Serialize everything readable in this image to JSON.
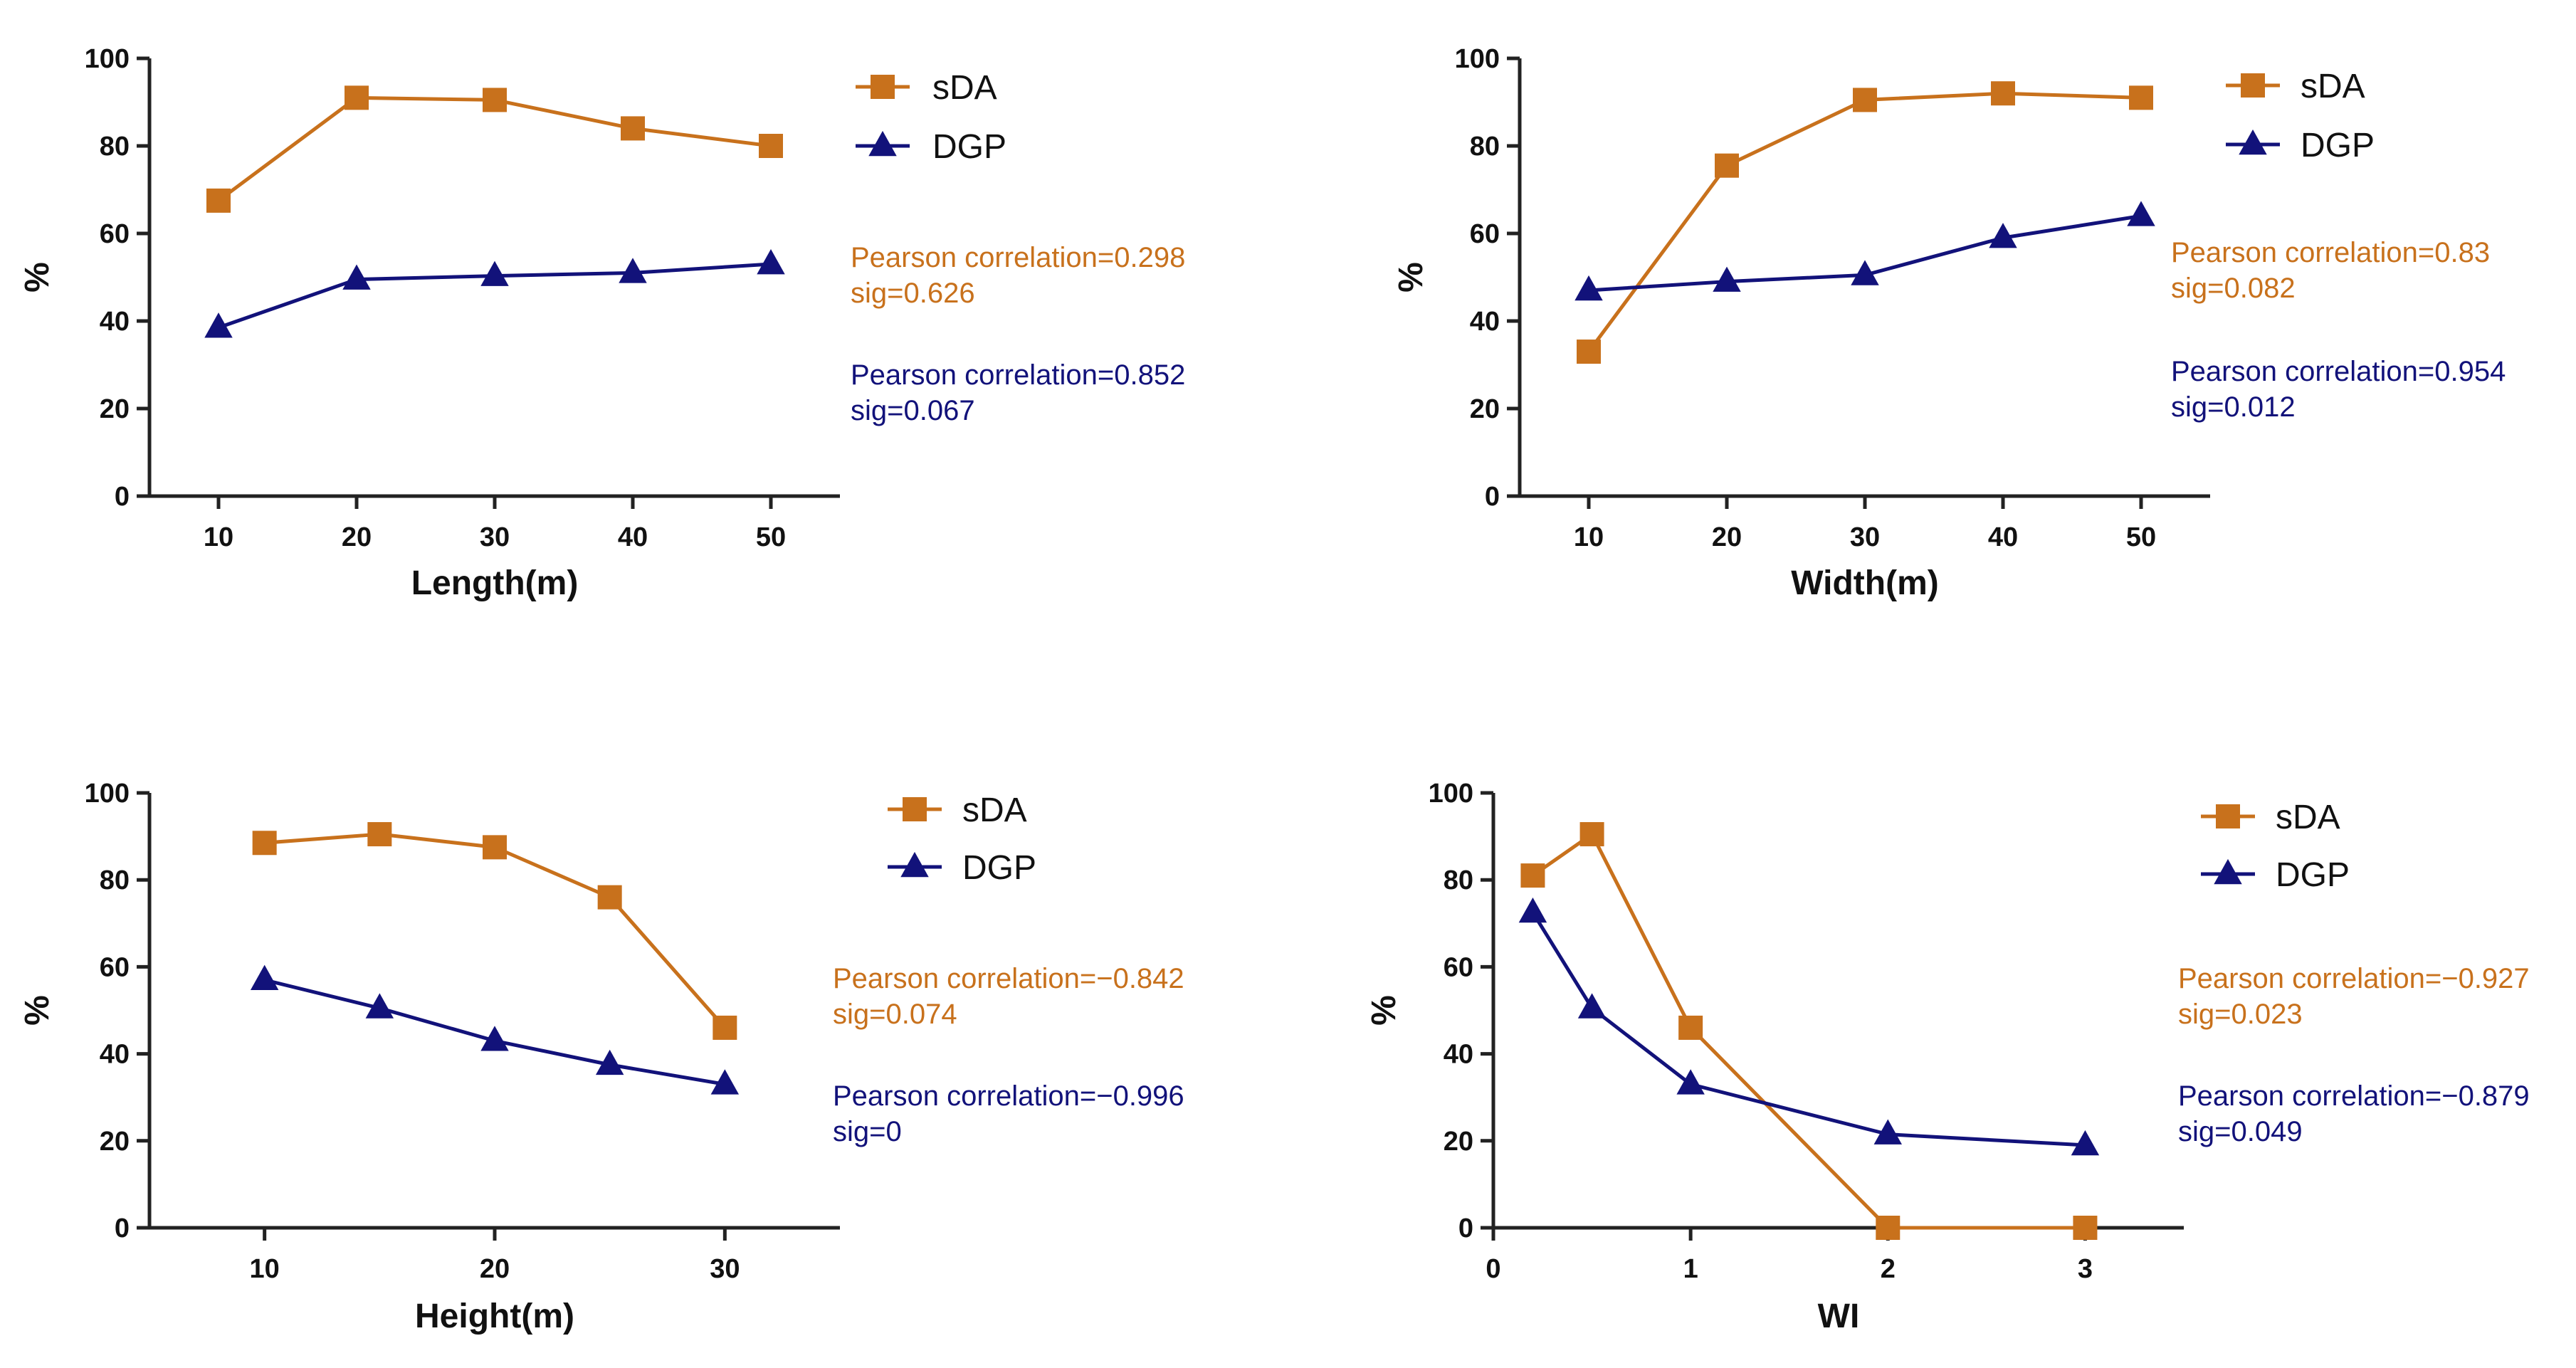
{
  "chart_data": [
    {
      "type": "line",
      "xlabel": "Length(m)",
      "ylabel": "%",
      "xlim": [
        5,
        55
      ],
      "ylim": [
        0,
        100
      ],
      "xticks": [
        10,
        20,
        30,
        40,
        50
      ],
      "yticks": [
        0,
        20,
        40,
        60,
        80,
        100
      ],
      "legend_position": "top-right",
      "series": [
        {
          "name": "sDA",
          "marker": "square",
          "color": "#C8711C",
          "x": [
            10,
            20,
            30,
            40,
            50
          ],
          "values": [
            67.5,
            91,
            90.5,
            84,
            80
          ]
        },
        {
          "name": "DGP",
          "marker": "triangle",
          "color": "#12127A",
          "x": [
            10,
            20,
            30,
            40,
            50
          ],
          "values": [
            38.5,
            49.5,
            50.3,
            51,
            53
          ]
        }
      ],
      "annotations": [
        {
          "series": "sDA",
          "line1": "Pearson correlation=0.298",
          "line2": "sig=0.626"
        },
        {
          "series": "DGP",
          "line1": "Pearson correlation=0.852",
          "line2": "sig=0.067"
        }
      ]
    },
    {
      "type": "line",
      "xlabel": "Width(m)",
      "ylabel": "%",
      "xlim": [
        5,
        55
      ],
      "ylim": [
        0,
        100
      ],
      "xticks": [
        10,
        20,
        30,
        40,
        50
      ],
      "yticks": [
        0,
        20,
        40,
        60,
        80,
        100
      ],
      "legend_position": "top-right",
      "series": [
        {
          "name": "sDA",
          "marker": "square",
          "color": "#C8711C",
          "x": [
            10,
            20,
            30,
            40,
            50
          ],
          "values": [
            33,
            75.5,
            90.5,
            92,
            91
          ]
        },
        {
          "name": "DGP",
          "marker": "triangle",
          "color": "#12127A",
          "x": [
            10,
            20,
            30,
            40,
            50
          ],
          "values": [
            47,
            49,
            50.5,
            59,
            64
          ]
        }
      ],
      "annotations": [
        {
          "series": "sDA",
          "line1": "Pearson correlation=0.83",
          "line2": "sig=0.082"
        },
        {
          "series": "DGP",
          "line1": "Pearson correlation=0.954",
          "line2": "sig=0.012"
        }
      ]
    },
    {
      "type": "line",
      "xlabel": "Height(m)",
      "ylabel": "%",
      "xlim": [
        5,
        35
      ],
      "ylim": [
        0,
        100
      ],
      "xticks": [
        10,
        20,
        30
      ],
      "yticks": [
        0,
        20,
        40,
        60,
        80,
        100
      ],
      "legend_position": "top-right",
      "series": [
        {
          "name": "sDA",
          "marker": "square",
          "color": "#C8711C",
          "x": [
            10,
            15,
            20,
            25,
            30
          ],
          "values": [
            88.5,
            90.5,
            87.5,
            76,
            46
          ]
        },
        {
          "name": "DGP",
          "marker": "triangle",
          "color": "#12127A",
          "x": [
            10,
            15,
            20,
            25,
            30
          ],
          "values": [
            57,
            50.5,
            43,
            37.5,
            33
          ]
        }
      ],
      "annotations": [
        {
          "series": "sDA",
          "line1": "Pearson correlation=−0.842",
          "line2": "sig=0.074"
        },
        {
          "series": "DGP",
          "line1": "Pearson correlation=−0.996",
          "line2": "sig=0"
        }
      ]
    },
    {
      "type": "line",
      "xlabel": "WI",
      "ylabel": "%",
      "xlim": [
        0,
        3.5
      ],
      "ylim": [
        0,
        100
      ],
      "xticks": [
        0,
        1,
        2,
        3
      ],
      "yticks": [
        0,
        20,
        40,
        60,
        80,
        100
      ],
      "legend_position": "top-right",
      "series": [
        {
          "name": "sDA",
          "marker": "square",
          "color": "#C8711C",
          "x": [
            0.2,
            0.5,
            1,
            2,
            3
          ],
          "values": [
            81,
            90.5,
            46,
            0,
            0
          ]
        },
        {
          "name": "DGP",
          "marker": "triangle",
          "color": "#12127A",
          "x": [
            0.2,
            0.5,
            1,
            2,
            3
          ],
          "values": [
            72.5,
            50.5,
            33,
            21.5,
            19
          ]
        }
      ],
      "annotations": [
        {
          "series": "sDA",
          "line1": "Pearson correlation=−0.927",
          "line2": "sig=0.023"
        },
        {
          "series": "DGP",
          "line1": "Pearson correlation=−0.879",
          "line2": "sig=0.049"
        }
      ]
    }
  ]
}
